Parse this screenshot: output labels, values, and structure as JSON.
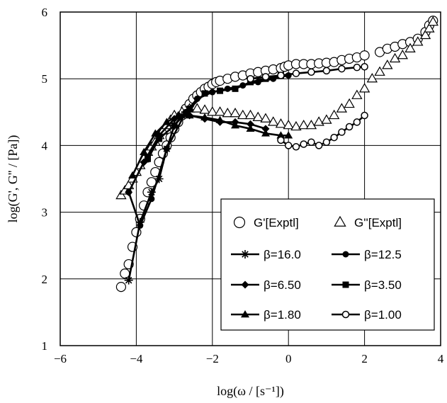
{
  "chart_data": {
    "type": "scatter",
    "xlabel": "log(ω / [s⁻¹])",
    "ylabel": "log(G', G'' / [Pa])",
    "xlim": [
      -6,
      4
    ],
    "ylim": [
      1,
      6
    ],
    "xticks": [
      "−6",
      "−4",
      "−2",
      "0",
      "2",
      "4"
    ],
    "yticks": [
      "1",
      "2",
      "3",
      "4",
      "5",
      "6"
    ],
    "grid": true,
    "legend_position": "bottom-right",
    "series": [
      {
        "name": "G'[Exptl]",
        "marker": "open-circle",
        "line": false,
        "points": [
          [
            -4.4,
            1.88
          ],
          [
            -4.3,
            2.08
          ],
          [
            -4.2,
            2.22
          ],
          [
            -4.1,
            2.48
          ],
          [
            -4.0,
            2.7
          ],
          [
            -3.9,
            2.9
          ],
          [
            -3.8,
            3.1
          ],
          [
            -3.7,
            3.3
          ],
          [
            -3.6,
            3.45
          ],
          [
            -3.5,
            3.6
          ],
          [
            -3.4,
            3.75
          ],
          [
            -3.3,
            3.88
          ],
          [
            -3.2,
            4.0
          ],
          [
            -3.1,
            4.12
          ],
          [
            -3.0,
            4.25
          ],
          [
            -2.9,
            4.35
          ],
          [
            -2.8,
            4.45
          ],
          [
            -2.7,
            4.55
          ],
          [
            -2.6,
            4.62
          ],
          [
            -2.5,
            4.7
          ],
          [
            -2.4,
            4.75
          ],
          [
            -2.3,
            4.8
          ],
          [
            -2.2,
            4.85
          ],
          [
            -2.1,
            4.88
          ],
          [
            -2.0,
            4.92
          ],
          [
            -1.9,
            4.95
          ],
          [
            -1.8,
            4.97
          ],
          [
            -1.6,
            5.0
          ],
          [
            -1.4,
            5.03
          ],
          [
            -1.2,
            5.05
          ],
          [
            -1.0,
            5.08
          ],
          [
            -0.8,
            5.1
          ],
          [
            -0.6,
            5.12
          ],
          [
            -0.4,
            5.14
          ],
          [
            -0.2,
            5.16
          ],
          [
            -0.1,
            5.18
          ],
          [
            0.0,
            5.2
          ],
          [
            0.2,
            5.22
          ],
          [
            0.4,
            5.22
          ],
          [
            0.6,
            5.22
          ],
          [
            0.8,
            5.23
          ],
          [
            1.0,
            5.24
          ],
          [
            1.2,
            5.25
          ],
          [
            1.4,
            5.28
          ],
          [
            1.6,
            5.3
          ],
          [
            1.8,
            5.32
          ],
          [
            2.0,
            5.35
          ],
          [
            2.4,
            5.4
          ],
          [
            2.6,
            5.45
          ],
          [
            2.8,
            5.48
          ],
          [
            3.0,
            5.52
          ],
          [
            3.2,
            5.55
          ],
          [
            3.4,
            5.6
          ],
          [
            3.6,
            5.7
          ],
          [
            3.7,
            5.8
          ],
          [
            3.8,
            5.87
          ]
        ]
      },
      {
        "name": "G''[Exptl]",
        "marker": "open-triangle",
        "line": false,
        "points": [
          [
            -4.4,
            3.25
          ],
          [
            -4.3,
            3.32
          ],
          [
            -4.2,
            3.4
          ],
          [
            -4.1,
            3.5
          ],
          [
            -4.0,
            3.6
          ],
          [
            -3.9,
            3.7
          ],
          [
            -3.8,
            3.8
          ],
          [
            -3.7,
            3.9
          ],
          [
            -3.6,
            3.98
          ],
          [
            -3.5,
            4.05
          ],
          [
            -3.4,
            4.15
          ],
          [
            -3.3,
            4.22
          ],
          [
            -3.2,
            4.3
          ],
          [
            -3.1,
            4.38
          ],
          [
            -3.0,
            4.45
          ],
          [
            -2.8,
            4.5
          ],
          [
            -2.6,
            4.55
          ],
          [
            -2.4,
            4.55
          ],
          [
            -2.2,
            4.53
          ],
          [
            -2.0,
            4.5
          ],
          [
            -1.8,
            4.5
          ],
          [
            -1.6,
            4.48
          ],
          [
            -1.4,
            4.48
          ],
          [
            -1.2,
            4.45
          ],
          [
            -1.0,
            4.45
          ],
          [
            -0.8,
            4.42
          ],
          [
            -0.6,
            4.4
          ],
          [
            -0.4,
            4.35
          ],
          [
            -0.2,
            4.32
          ],
          [
            0.0,
            4.3
          ],
          [
            0.2,
            4.28
          ],
          [
            0.4,
            4.3
          ],
          [
            0.6,
            4.3
          ],
          [
            0.8,
            4.35
          ],
          [
            1.0,
            4.38
          ],
          [
            1.2,
            4.45
          ],
          [
            1.4,
            4.55
          ],
          [
            1.6,
            4.62
          ],
          [
            1.8,
            4.75
          ],
          [
            2.0,
            4.85
          ],
          [
            2.2,
            5.0
          ],
          [
            2.4,
            5.1
          ],
          [
            2.6,
            5.2
          ],
          [
            2.8,
            5.3
          ],
          [
            3.0,
            5.35
          ],
          [
            3.2,
            5.45
          ],
          [
            3.4,
            5.55
          ],
          [
            3.6,
            5.65
          ],
          [
            3.7,
            5.75
          ],
          [
            3.8,
            5.85
          ]
        ]
      },
      {
        "name": "β=16.0",
        "marker": "asterisk",
        "line": true,
        "points": [
          [
            -4.2,
            1.98
          ],
          [
            -3.9,
            2.85
          ],
          [
            -3.6,
            3.3
          ],
          [
            -3.4,
            3.5
          ],
          [
            -3.2,
            3.95
          ],
          [
            -3.0,
            4.3
          ],
          [
            -2.8,
            4.45
          ]
        ]
      },
      {
        "name": "β=12.5",
        "marker": "filled-circle",
        "line": true,
        "points": [
          [
            -4.2,
            3.3
          ],
          [
            -3.9,
            2.8
          ],
          [
            -3.6,
            3.2
          ],
          [
            -3.2,
            3.95
          ],
          [
            -2.7,
            4.5
          ],
          [
            -2.4,
            4.7
          ],
          [
            -2.0,
            4.8
          ],
          [
            -1.6,
            4.85
          ],
          [
            -1.2,
            4.9
          ],
          [
            -0.8,
            4.95
          ],
          [
            -0.4,
            5.0
          ],
          [
            0.0,
            5.05
          ]
        ]
      },
      {
        "name": "β=6.50",
        "marker": "filled-diamond",
        "line": true,
        "points": [
          [
            -4.2,
            3.3
          ],
          [
            -3.8,
            3.75
          ],
          [
            -3.4,
            4.15
          ],
          [
            -3.0,
            4.4
          ],
          [
            -2.6,
            4.45
          ],
          [
            -2.2,
            4.4
          ],
          [
            -1.8,
            4.35
          ],
          [
            -1.4,
            4.35
          ],
          [
            -1.0,
            4.32
          ],
          [
            -0.6,
            4.25
          ]
        ]
      },
      {
        "name": "β=3.50",
        "marker": "filled-square",
        "line": true,
        "points": [
          [
            -3.7,
            3.8
          ],
          [
            -3.4,
            4.1
          ],
          [
            -3.0,
            4.3
          ],
          [
            -2.6,
            4.55
          ],
          [
            -2.2,
            4.78
          ],
          [
            -1.8,
            4.82
          ],
          [
            -1.4,
            4.85
          ],
          [
            -1.0,
            4.95
          ],
          [
            -0.6,
            5.0
          ],
          [
            -0.2,
            5.05
          ]
        ]
      },
      {
        "name": "β=1.80",
        "marker": "filled-triangle",
        "line": true,
        "points": [
          [
            -4.1,
            3.55
          ],
          [
            -3.8,
            3.9
          ],
          [
            -3.5,
            4.18
          ],
          [
            -3.2,
            4.35
          ],
          [
            -2.9,
            4.45
          ],
          [
            -2.6,
            4.45
          ],
          [
            -2.2,
            4.42
          ],
          [
            -1.8,
            4.38
          ],
          [
            -1.4,
            4.3
          ],
          [
            -1.0,
            4.25
          ],
          [
            -0.6,
            4.18
          ],
          [
            -0.2,
            4.15
          ],
          [
            0.0,
            4.15
          ]
        ]
      },
      {
        "name": "β=1.00",
        "marker": "open-circle-line",
        "line": true,
        "points": [
          [
            -0.2,
            4.08
          ],
          [
            0.0,
            4.0
          ],
          [
            0.2,
            3.98
          ],
          [
            0.4,
            4.02
          ],
          [
            0.6,
            4.05
          ],
          [
            0.8,
            4.0
          ],
          [
            1.0,
            4.05
          ],
          [
            1.2,
            4.12
          ],
          [
            1.4,
            4.2
          ],
          [
            1.6,
            4.28
          ],
          [
            1.8,
            4.35
          ],
          [
            2.0,
            4.45
          ]
        ]
      },
      {
        "name": "",
        "marker": "open-circle-line",
        "line": true,
        "points": [
          [
            -1.0,
            5.0
          ],
          [
            -0.6,
            5.03
          ],
          [
            -0.2,
            5.05
          ],
          [
            0.2,
            5.08
          ],
          [
            0.6,
            5.1
          ],
          [
            1.0,
            5.12
          ],
          [
            1.4,
            5.15
          ],
          [
            1.8,
            5.17
          ],
          [
            2.0,
            5.18
          ]
        ]
      }
    ]
  }
}
